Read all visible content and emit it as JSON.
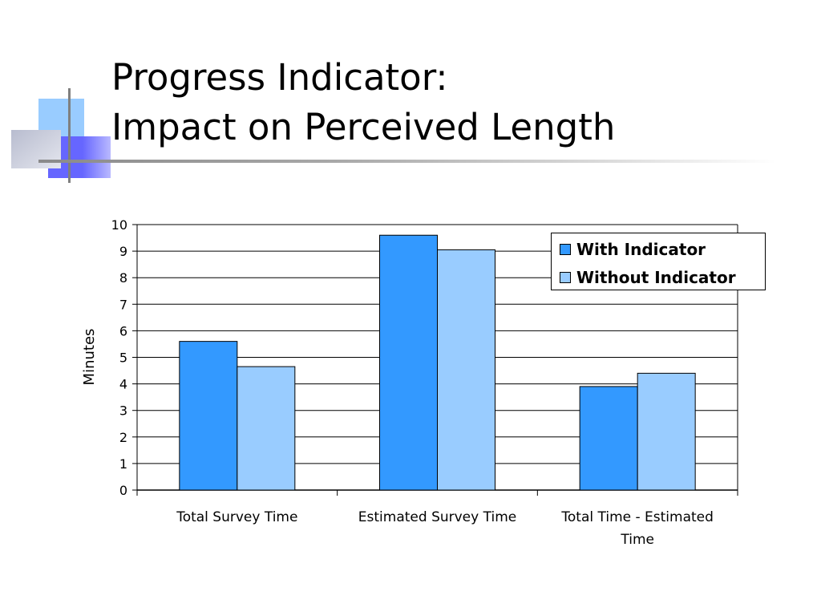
{
  "slide": {
    "title_line1": "Progress Indicator:",
    "title_line2": "Impact on Perceived Length"
  },
  "colors": {
    "with_indicator": "#3399ff",
    "without_indicator": "#99ccff",
    "deco_light_blue": "#99ccff",
    "deco_blue": "#6666ff",
    "deco_gray": "#c8c8d8"
  },
  "chart_data": {
    "type": "bar",
    "categories": [
      "Total Survey Time",
      "Estimated Survey Time",
      "Total Time - Estimated Time"
    ],
    "series": [
      {
        "name": "With Indicator",
        "values": [
          5.6,
          9.6,
          3.9
        ]
      },
      {
        "name": "Without Indicator",
        "values": [
          4.65,
          9.05,
          4.4
        ]
      }
    ],
    "ylabel": "Minutes",
    "xlabel": "",
    "ylim": [
      0,
      10
    ],
    "yticks": [
      0,
      1,
      2,
      3,
      4,
      5,
      6,
      7,
      8,
      9,
      10
    ],
    "grid": true,
    "legend": "top-right"
  }
}
